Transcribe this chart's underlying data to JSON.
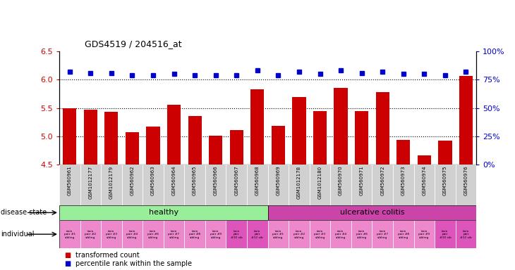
{
  "title": "GDS4519 / 204516_at",
  "samples": [
    "GSM560961",
    "GSM1012177",
    "GSM1012179",
    "GSM560962",
    "GSM560963",
    "GSM560964",
    "GSM560965",
    "GSM560966",
    "GSM560967",
    "GSM560968",
    "GSM560969",
    "GSM1012178",
    "GSM1012180",
    "GSM560970",
    "GSM560971",
    "GSM560972",
    "GSM560973",
    "GSM560974",
    "GSM560975",
    "GSM560976"
  ],
  "bar_values": [
    5.5,
    5.47,
    5.43,
    5.07,
    5.17,
    5.56,
    5.36,
    5.01,
    5.11,
    5.83,
    5.19,
    5.69,
    5.45,
    5.85,
    5.45,
    5.78,
    4.94,
    4.67,
    4.93,
    6.07
  ],
  "dot_values": [
    82,
    81,
    81,
    79,
    79,
    80,
    79,
    79,
    79,
    83,
    79,
    82,
    80,
    83,
    81,
    82,
    80,
    80,
    79,
    82
  ],
  "ylim_left": [
    4.5,
    6.5
  ],
  "ylim_right": [
    0,
    100
  ],
  "yticks_left": [
    4.5,
    5.0,
    5.5,
    6.0,
    6.5
  ],
  "yticks_right": [
    0,
    25,
    50,
    75,
    100
  ],
  "ytick_labels_right": [
    "0%",
    "25%",
    "50%",
    "75%",
    "100%"
  ],
  "hlines": [
    5.0,
    5.5,
    6.0
  ],
  "bar_color": "#cc0000",
  "dot_color": "#0000cc",
  "healthy_color": "#99ee99",
  "uc_color": "#cc44aa",
  "ind_color_light": "#ee88cc",
  "ind_color_dark": "#dd55bb",
  "bg_xtick": "#cccccc",
  "disease_state_healthy": "healthy",
  "disease_state_uc": "ulcerative colitis",
  "individual_labels": [
    "twin\npair #1\nsibling",
    "twin\npair #2\nsibling",
    "twin\npair #3\nsibling",
    "twin\npair #4\nsibling",
    "twin\npair #6\nsibling",
    "twin\npair #7\nsibling",
    "twin\npair #8\nsibling",
    "twin\npair #9\nsibling",
    "twin\npair\n#10 sib",
    "twin\npair\n#12 sib",
    "twin\npair #1\nsibling",
    "twin\npair #2\nsibling",
    "twin\npair #3\nsibling",
    "twin\npair #4\nsibling",
    "twin\npair #6\nsibling",
    "twin\npair #7\nsibling",
    "twin\npair #8\nsibling",
    "twin\npair #9\nsibling",
    "twin\npair\n#10 sib",
    "twin\npair\n#12 sib"
  ],
  "ind_cell_colors": [
    "#ee88cc",
    "#ee88cc",
    "#ee88cc",
    "#ee88cc",
    "#ee88cc",
    "#ee88cc",
    "#ee88cc",
    "#ee88cc",
    "#dd55bb",
    "#dd55bb",
    "#ee88cc",
    "#ee88cc",
    "#ee88cc",
    "#ee88cc",
    "#ee88cc",
    "#ee88cc",
    "#ee88cc",
    "#ee88cc",
    "#dd55bb",
    "#dd55bb"
  ],
  "n_healthy": 10,
  "n_uc": 10,
  "legend_bar_label": "transformed count",
  "legend_dot_label": "percentile rank within the sample"
}
